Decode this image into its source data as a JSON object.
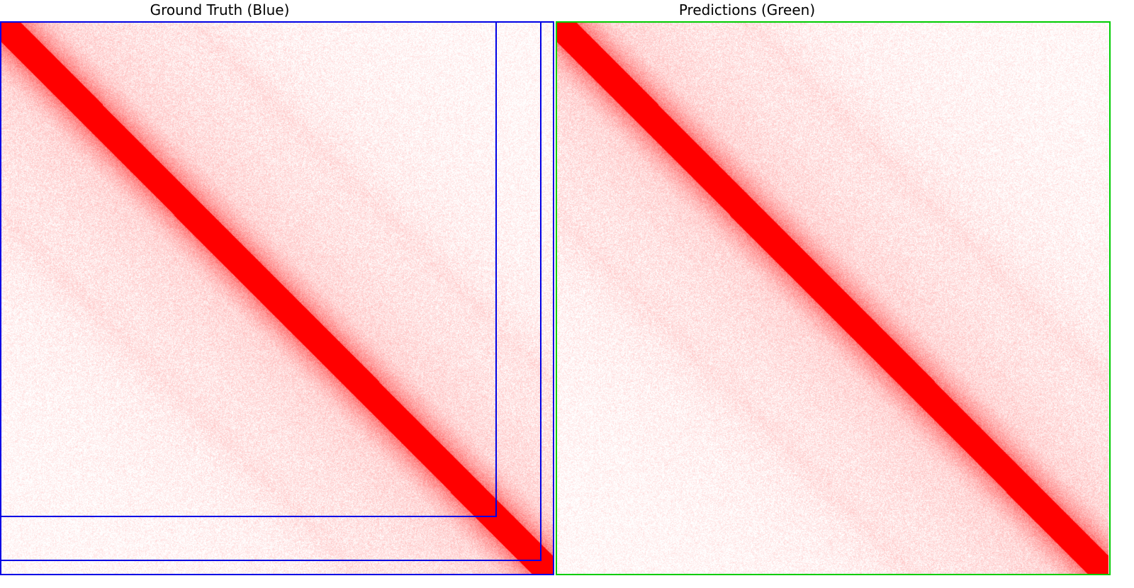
{
  "panels": {
    "left": {
      "title": "Ground Truth (Blue)",
      "box_color": "#0000e6",
      "box_count": 3
    },
    "right": {
      "title": "Predictions (Green)",
      "box_color": "#00cc00",
      "box_count": 1
    }
  },
  "heatmap": {
    "colormap": "white-to-red",
    "diagonal_color": "#ff0000",
    "background_color": "#ffe6e6"
  }
}
